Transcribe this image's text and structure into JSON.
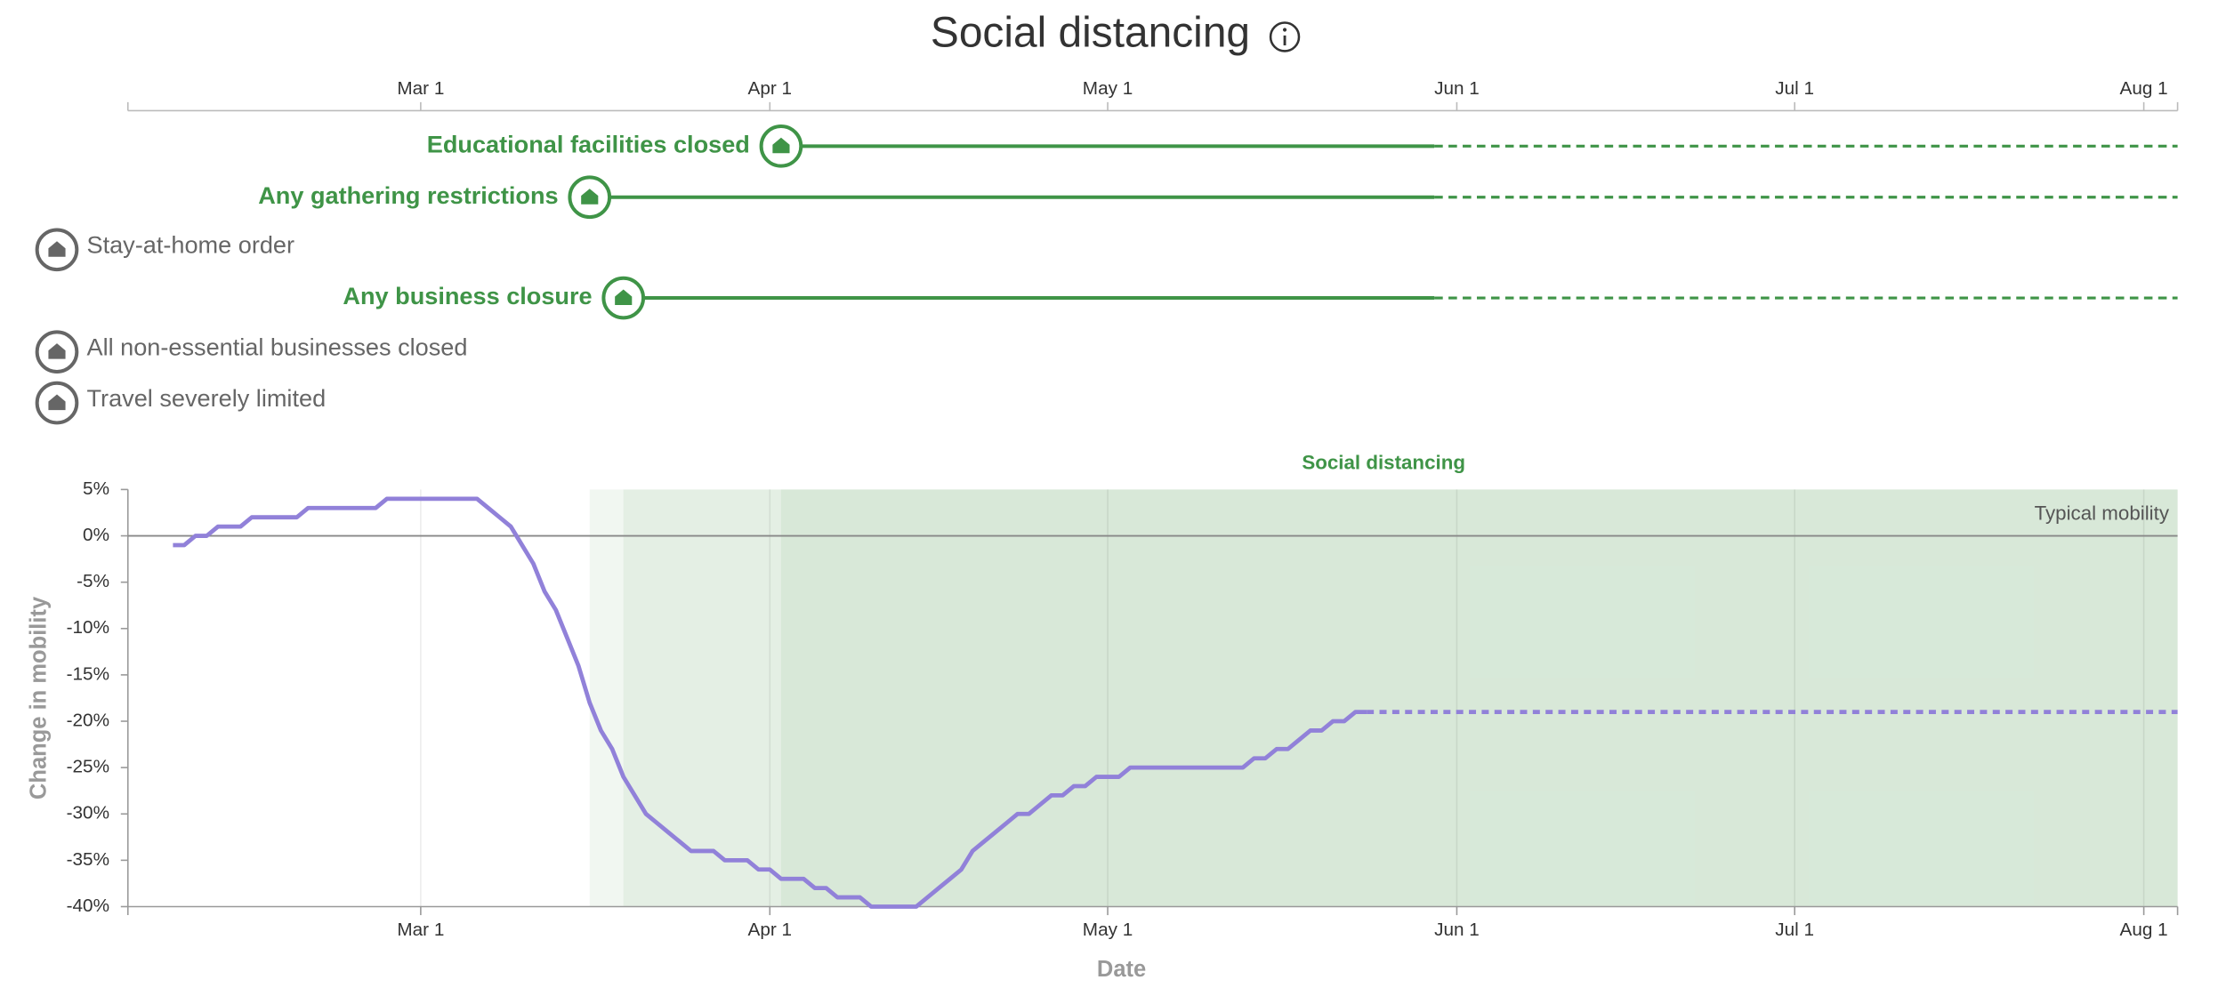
{
  "title": "Social distancing",
  "interventions": [
    {
      "name": "Educational facilities closed",
      "active": true,
      "start": "Apr 2",
      "solid_until": "May 30"
    },
    {
      "name": "Any gathering restrictions",
      "active": true,
      "start": "Mar 16",
      "solid_until": "May 30"
    },
    {
      "name": "Stay-at-home order",
      "active": false
    },
    {
      "name": "Any business closure",
      "active": true,
      "start": "Mar 19",
      "solid_until": "May 30"
    },
    {
      "name": "All non-essential businesses closed",
      "active": false
    },
    {
      "name": "Travel severely limited",
      "active": false
    }
  ],
  "chart_data": {
    "type": "line",
    "band_label": "Social distancing",
    "reference_line": {
      "value": 0,
      "label": "Typical mobility"
    },
    "y_label": "Change in mobility",
    "x_label": "Date",
    "xlim": [
      "Feb 4",
      "Aug 4"
    ],
    "xticks": [
      "Mar 1",
      "Apr 1",
      "May 1",
      "Jun 1",
      "Jul 1",
      "Aug 1"
    ],
    "ylim": [
      -40,
      5
    ],
    "yticks": [
      {
        "value": 5,
        "label": "5%"
      },
      {
        "value": 0,
        "label": "0%"
      },
      {
        "value": -5,
        "label": "-5%"
      },
      {
        "value": -10,
        "label": "-10%"
      },
      {
        "value": -15,
        "label": "-15%"
      },
      {
        "value": -20,
        "label": "-20%"
      },
      {
        "value": -25,
        "label": "-25%"
      },
      {
        "value": -30,
        "label": "-30%"
      },
      {
        "value": -35,
        "label": "-35%"
      },
      {
        "value": -40,
        "label": "-40%"
      }
    ],
    "grid": true,
    "series": [
      {
        "color": "#9181d9",
        "dashed": false,
        "x": [
          "Feb 8",
          "Feb 9",
          "Feb 10",
          "Feb 11",
          "Feb 12",
          "Feb 13",
          "Feb 14",
          "Feb 15",
          "Feb 16",
          "Feb 17",
          "Feb 18",
          "Feb 19",
          "Feb 20",
          "Feb 21",
          "Feb 22",
          "Feb 23",
          "Feb 24",
          "Feb 25",
          "Feb 26",
          "Feb 27",
          "Feb 28",
          "Feb 29",
          "Mar 1",
          "Mar 2",
          "Mar 3",
          "Mar 4",
          "Mar 5",
          "Mar 6",
          "Mar 7",
          "Mar 8",
          "Mar 9",
          "Mar 10",
          "Mar 11",
          "Mar 12",
          "Mar 13",
          "Mar 14",
          "Mar 15",
          "Mar 16",
          "Mar 17",
          "Mar 18",
          "Mar 19",
          "Mar 20",
          "Mar 21",
          "Mar 22",
          "Mar 23",
          "Mar 24",
          "Mar 25",
          "Mar 26",
          "Mar 27",
          "Mar 28",
          "Mar 29",
          "Mar 30",
          "Mar 31",
          "Apr 1",
          "Apr 2",
          "Apr 3",
          "Apr 4",
          "Apr 5",
          "Apr 6",
          "Apr 7",
          "Apr 8",
          "Apr 9",
          "Apr 10",
          "Apr 11",
          "Apr 12",
          "Apr 13",
          "Apr 14",
          "Apr 15",
          "Apr 16",
          "Apr 17",
          "Apr 18",
          "Apr 19",
          "Apr 20",
          "Apr 21",
          "Apr 22",
          "Apr 23",
          "Apr 24",
          "Apr 25",
          "Apr 26",
          "Apr 27",
          "Apr 28",
          "Apr 29",
          "Apr 30",
          "May 1",
          "May 2",
          "May 3",
          "May 4",
          "May 5",
          "May 6",
          "May 7",
          "May 8",
          "May 9",
          "May 10",
          "May 11",
          "May 12",
          "May 13",
          "May 14",
          "May 15",
          "May 16",
          "May 17",
          "May 18",
          "May 19",
          "May 20",
          "May 21",
          "May 22",
          "May 23",
          "May 24"
        ],
        "values": [
          -1,
          -1,
          0,
          0,
          1,
          1,
          1,
          2,
          2,
          2,
          2,
          2,
          3,
          3,
          3,
          3,
          3,
          3,
          3,
          4,
          4,
          4,
          4,
          4,
          4,
          4,
          4,
          4,
          3,
          2,
          1,
          -1,
          -3,
          -6,
          -8,
          -11,
          -14,
          -18,
          -21,
          -23,
          -26,
          -28,
          -30,
          -31,
          -32,
          -33,
          -34,
          -34,
          -34,
          -35,
          -35,
          -35,
          -36,
          -36,
          -37,
          -37,
          -37,
          -38,
          -38,
          -39,
          -39,
          -39,
          -40,
          -40,
          -40,
          -40,
          -40,
          -39,
          -38,
          -37,
          -36,
          -34,
          -33,
          -32,
          -31,
          -30,
          -30,
          -29,
          -28,
          -28,
          -27,
          -27,
          -26,
          -26,
          -26,
          -25,
          -25,
          -25,
          -25,
          -25,
          -25,
          -25,
          -25,
          -25,
          -25,
          -25,
          -24,
          -24,
          -23,
          -23,
          -22,
          -21,
          -21,
          -20,
          -20,
          -19,
          -19
        ]
      },
      {
        "color": "#9181d9",
        "dashed": true,
        "x": [
          "May 24",
          "Aug 4"
        ],
        "values": [
          -19,
          -19
        ]
      }
    ]
  }
}
